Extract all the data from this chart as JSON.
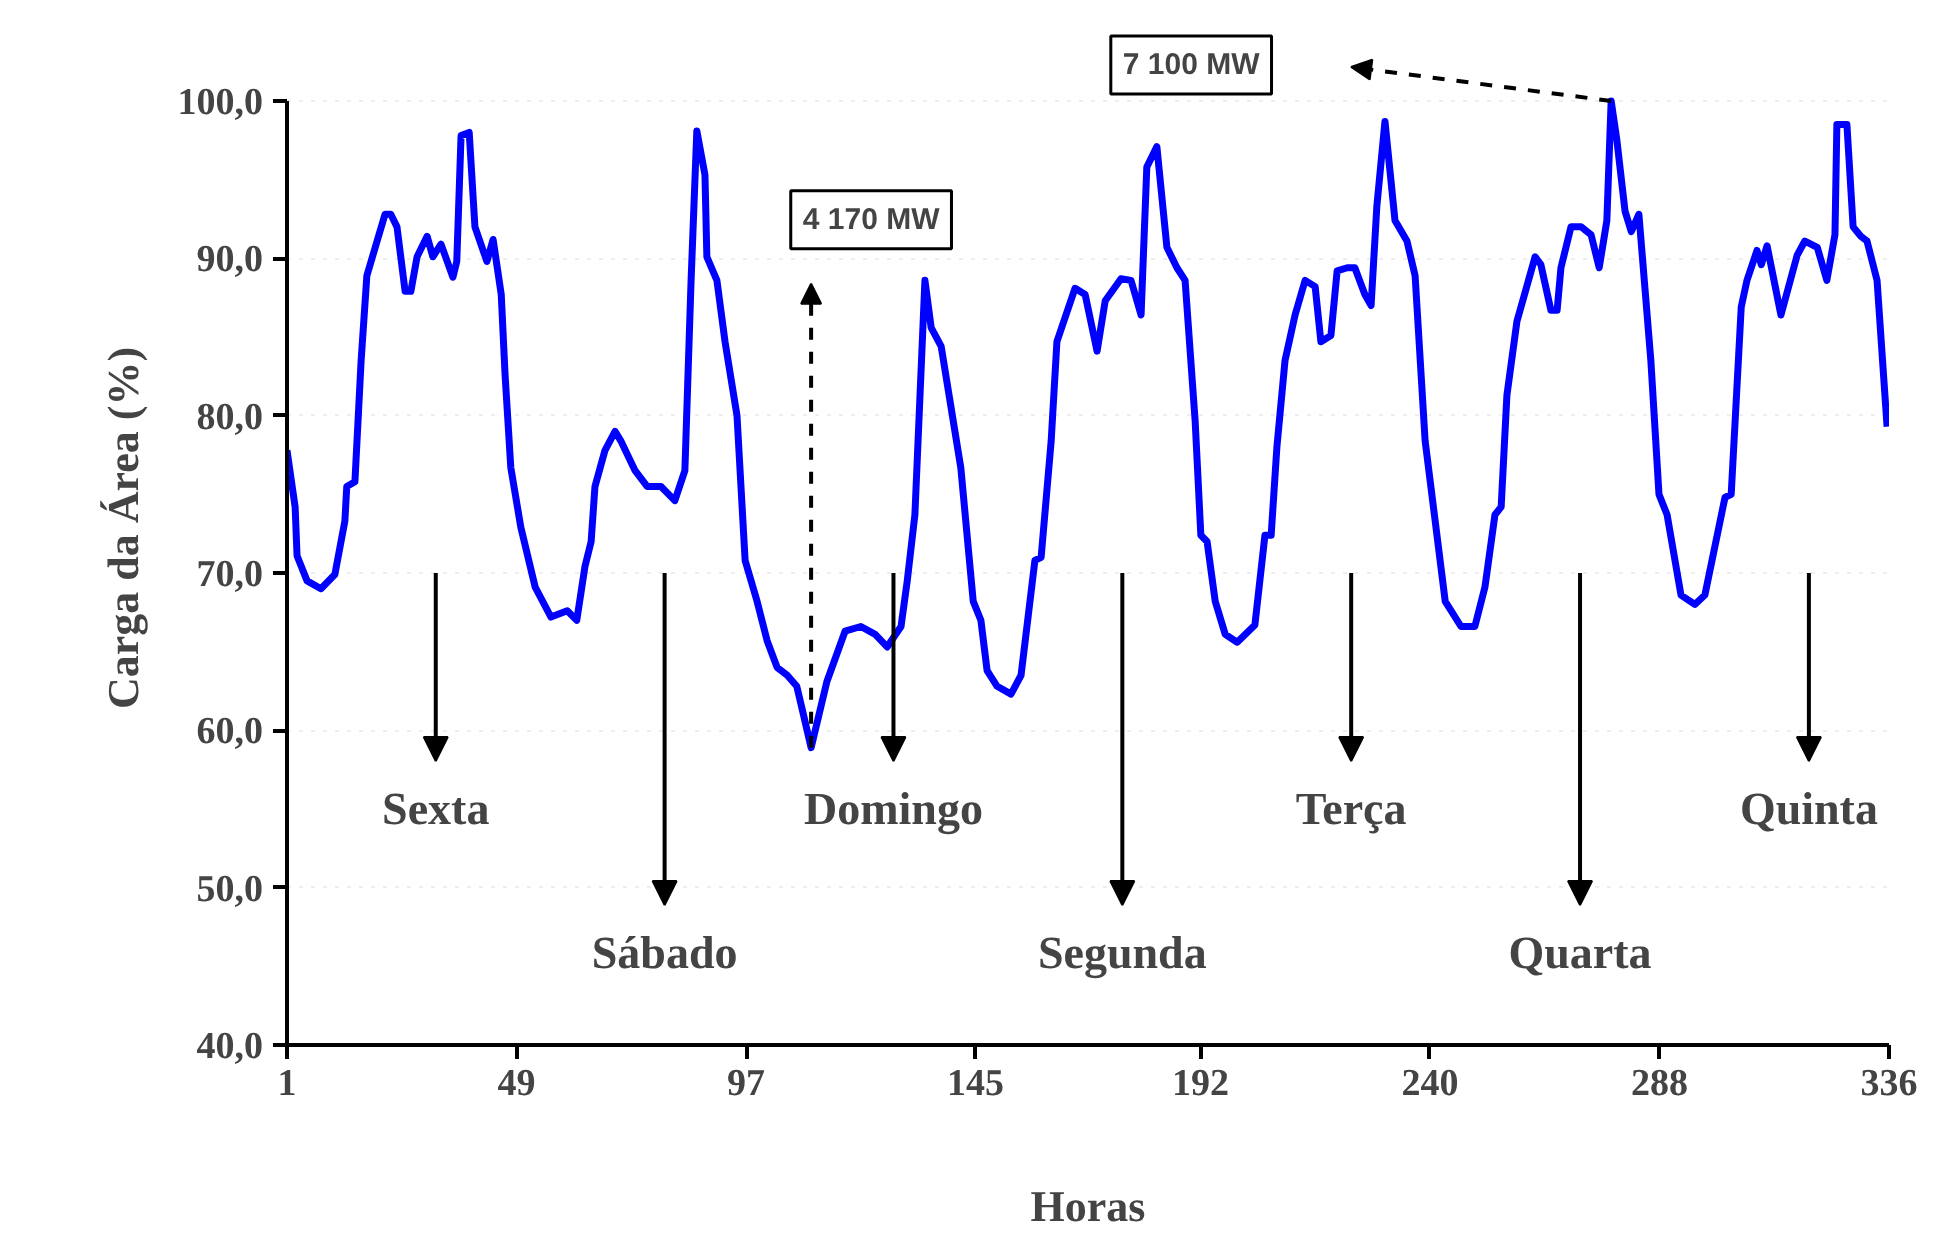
{
  "chart_data": {
    "type": "line",
    "xlabel": "Horas",
    "ylabel": "Carga da Área (%)",
    "xlim": [
      1,
      336
    ],
    "xticks": [
      1,
      49,
      97,
      145,
      192,
      240,
      288,
      336
    ],
    "ylim": [
      40,
      100
    ],
    "yticks": [
      {
        "value": 40,
        "label": "40,0"
      },
      {
        "value": 50,
        "label": "50,0"
      },
      {
        "value": 60,
        "label": "60,0"
      },
      {
        "value": 70,
        "label": "70,0"
      },
      {
        "value": 80,
        "label": "80,0"
      },
      {
        "value": 90,
        "label": "90,0"
      },
      {
        "value": 100,
        "label": "100,0"
      }
    ],
    "grid": "y",
    "marker": "none",
    "line_style": "solid",
    "series": [
      {
        "color": "#0000ff",
        "x": [
          1,
          2.7,
          3.1,
          5.2,
          8.1,
          11.0,
          13.1,
          13.5,
          15.2,
          16.5,
          17.7,
          21.5,
          22.7,
          24.0,
          25.7,
          26.9,
          28.2,
          30.3,
          31.5,
          33.2,
          35.7,
          36.5,
          37.4,
          39.1,
          40.3,
          42.8,
          44.1,
          45.8,
          46.6,
          47.8,
          49.9,
          52.9,
          56.2,
          59.6,
          61.6,
          63.3,
          64.6,
          65.4,
          67.5,
          69.6,
          70.8,
          73.8,
          76.3,
          79.2,
          82.1,
          84.2,
          85.5,
          86.7,
          88.4,
          88.8,
          90.9,
          92.6,
          95.1,
          96.8,
          99.3,
          101.4,
          103.5,
          105.6,
          107.6,
          109.3,
          110.6,
          113.9,
          117.7,
          121.0,
          124.0,
          126.5,
          129.4,
          130.7,
          132.3,
          134.4,
          135.7,
          137.8,
          141.9,
          144.5,
          146.1,
          147.4,
          149.5,
          152.4,
          154.5,
          157.4,
          158.7,
          160.8,
          162.0,
          165.8,
          167.9,
          170.4,
          172.1,
          175.4,
          177.5,
          179.6,
          180.8,
          182.9,
          185.0,
          187.1,
          188.8,
          190.9,
          192.1,
          193.4,
          195.1,
          197.2,
          199.7,
          203.4,
          205.5,
          206.8,
          208.0,
          209.7,
          211.8,
          213.9,
          216.0,
          217.2,
          219.3,
          220.6,
          222.7,
          224.3,
          226.4,
          227.7,
          228.9,
          230.6,
          232.7,
          235.2,
          236.9,
          239.0,
          243.2,
          246.5,
          249.4,
          251.5,
          253.6,
          254.9,
          256.1,
          258.2,
          262.0,
          263.2,
          265.3,
          266.6,
          267.4,
          269.5,
          271.6,
          273.7,
          275.4,
          277.0,
          277.9,
          279.1,
          280.8,
          282.1,
          283.7,
          286.2,
          287.9,
          289.6,
          292.5,
          295.4,
          297.5,
          299.6,
          301.7,
          303.0,
          305.1,
          306.3,
          308.4,
          309.3,
          310.5,
          313.4,
          316.8,
          318.4,
          321.0,
          323.0,
          324.7,
          325.1,
          327.2,
          328.5,
          330.1,
          331.4,
          333.5,
          335.6
        ],
        "values": [
          77.8,
          74.2,
          71.1,
          69.5,
          69.0,
          69.9,
          73.3,
          75.5,
          75.8,
          83.5,
          88.9,
          92.8,
          92.8,
          92.0,
          87.9,
          87.9,
          90.1,
          91.4,
          90.1,
          90.9,
          88.8,
          89.8,
          97.8,
          98.0,
          92.0,
          89.8,
          91.2,
          87.7,
          82.6,
          76.7,
          72.9,
          69.1,
          67.2,
          67.6,
          67.0,
          70.4,
          72.0,
          75.5,
          77.8,
          79.0,
          78.4,
          76.5,
          75.5,
          75.5,
          74.6,
          76.5,
          88.6,
          98.1,
          95.3,
          90.1,
          88.6,
          84.7,
          80.0,
          70.8,
          68.2,
          65.7,
          64.0,
          63.5,
          62.8,
          60.6,
          58.9,
          63.1,
          66.3,
          66.6,
          66.1,
          65.3,
          66.6,
          69.5,
          73.7,
          88.6,
          85.6,
          84.4,
          76.7,
          68.2,
          67.0,
          63.8,
          62.8,
          62.3,
          63.5,
          70.8,
          71.0,
          78.4,
          84.7,
          88.1,
          87.7,
          84.1,
          87.3,
          88.7,
          88.6,
          86.4,
          95.8,
          97.1,
          90.7,
          89.4,
          88.6,
          79.7,
          72.4,
          72.0,
          68.2,
          66.1,
          65.6,
          66.7,
          72.4,
          72.4,
          78.0,
          83.5,
          86.4,
          88.6,
          88.2,
          84.7,
          85.1,
          89.2,
          89.4,
          89.4,
          87.7,
          87.0,
          93.3,
          98.7,
          92.4,
          91.1,
          88.9,
          78.4,
          68.2,
          66.6,
          66.6,
          69.1,
          73.7,
          74.2,
          81.3,
          86.0,
          90.1,
          89.6,
          86.7,
          86.7,
          89.4,
          92.0,
          92.0,
          91.5,
          89.4,
          92.4,
          100.0,
          97.5,
          93.0,
          91.7,
          92.8,
          83.5,
          75.0,
          73.7,
          68.6,
          68.0,
          68.6,
          71.7,
          74.8,
          75.0,
          86.9,
          88.6,
          90.5,
          89.6,
          90.8,
          86.4,
          90.2,
          91.1,
          90.7,
          88.6,
          91.5,
          98.5,
          98.5,
          92.0,
          91.4,
          91.1,
          88.6,
          79.3
        ]
      }
    ],
    "annotations": [
      "Sexta",
      "Sábado",
      "Domingo",
      "Segunda",
      "Terça",
      "Quarta",
      "Quinta",
      "4 170 MW",
      "7 100 MW"
    ]
  }
}
